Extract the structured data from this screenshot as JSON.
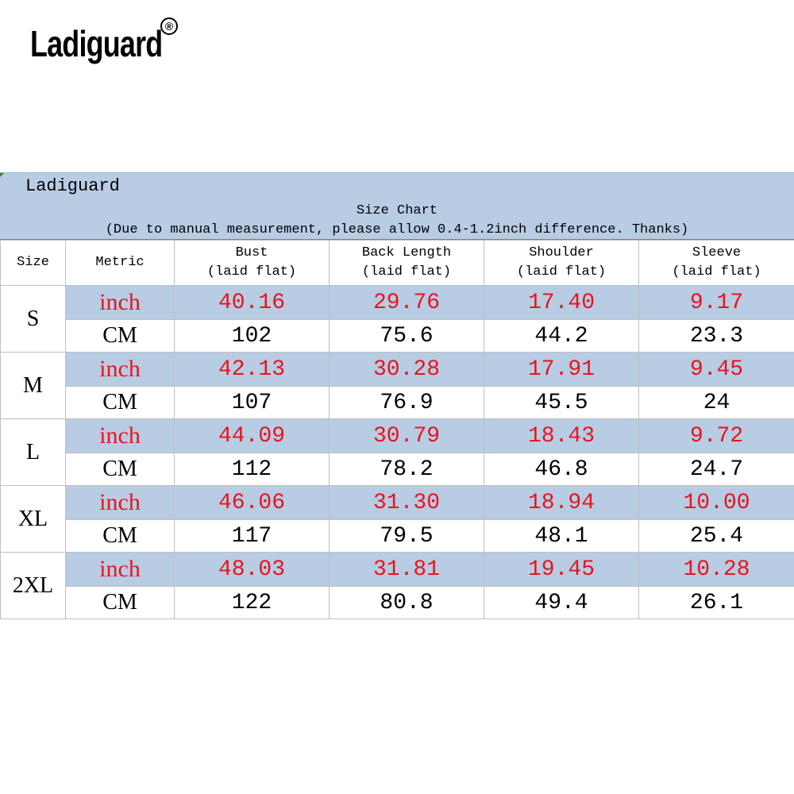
{
  "logo": {
    "text": "Ladiguard",
    "mark": "®"
  },
  "chart": {
    "brand": "Ladiguard",
    "title": "Size Chart",
    "note": "(Due to manual measurement, please allow 0.4-1.2inch difference. Thanks)",
    "headers": {
      "size": "Size",
      "metric": "Metric",
      "bust": "Bust",
      "back_length": "Back Length",
      "shoulder": "Shoulder",
      "sleeve": "Sleeve",
      "sub": "(laid flat)"
    },
    "rows": [
      {
        "size": "S",
        "inch_label": "inch",
        "cm_label": "CM",
        "inch": [
          "40.16",
          "29.76",
          "17.40",
          "9.17"
        ],
        "cm": [
          "102",
          "75.6",
          "44.2",
          "23.3"
        ]
      },
      {
        "size": "M",
        "inch_label": "inch",
        "cm_label": "CM",
        "inch": [
          "42.13",
          "30.28",
          "17.91",
          "9.45"
        ],
        "cm": [
          "107",
          "76.9",
          "45.5",
          "24"
        ]
      },
      {
        "size": "L",
        "inch_label": "inch",
        "cm_label": "CM",
        "inch": [
          "44.09",
          "30.79",
          "18.43",
          "9.72"
        ],
        "cm": [
          "112",
          "78.2",
          "46.8",
          "24.7"
        ]
      },
      {
        "size": "XL",
        "inch_label": "inch",
        "cm_label": "CM",
        "inch": [
          "46.06",
          "31.30",
          "18.94",
          "10.00"
        ],
        "cm": [
          "117",
          "79.5",
          "48.1",
          "25.4"
        ]
      },
      {
        "size": "2XL",
        "inch_label": "inch",
        "cm_label": "CM",
        "inch": [
          "48.03",
          "31.81",
          "19.45",
          "10.28"
        ],
        "cm": [
          "122",
          "80.8",
          "49.4",
          "26.1"
        ]
      }
    ]
  }
}
